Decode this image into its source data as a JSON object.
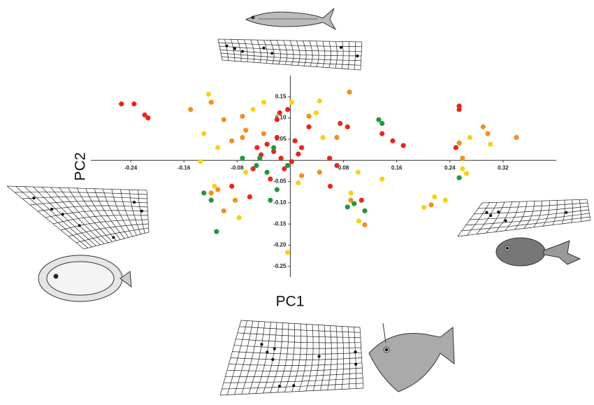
{
  "chart_data": {
    "type": "scatter",
    "x_label": "PC1",
    "y_label": "PC2",
    "xlim": [
      -0.3,
      0.4
    ],
    "ylim": [
      -0.275,
      0.2
    ],
    "xticks": [
      -0.24,
      -0.16,
      -0.08,
      0.08,
      0.16,
      0.24,
      0.32
    ],
    "yticks": [
      0.15,
      {
        "value": 0.1,
        "label": "0.10"
      },
      0.05,
      -0.05,
      {
        "value": -0.1,
        "label": "-0.10"
      },
      -0.15,
      {
        "value": -0.2,
        "label": "-0.20"
      },
      -0.25
    ],
    "series": [
      {
        "color": "#e8261b",
        "x": [
          -0.254,
          -0.235,
          -0.219,
          -0.214,
          0.254,
          0.254,
          0.154,
          0.17,
          0.138,
          0.075,
          0.086,
          0.07,
          0.06,
          -0.016,
          -0.004,
          -0.02,
          -0.035,
          -0.025,
          -0.014,
          -0.044,
          -0.009,
          -0.03,
          0.007,
          0.017,
          -0.02,
          0.002,
          -0.056,
          -0.088,
          -0.061,
          0.028,
          0.249,
          0.107,
          0.059,
          0.012,
          -0.05
        ],
        "y": [
          0.133,
          0.133,
          0.107,
          0.1,
          0.128,
          0.12,
          0.046,
          0.035,
          0.063,
          0.087,
          0.079,
          -0.012,
          -0.061,
          0.112,
          0.12,
          0.096,
          0.038,
          0.021,
          0.005,
          0.013,
          -0.02,
          -0.044,
          0.046,
          0.03,
          0.054,
          -0.003,
          -0.02,
          -0.061,
          -0.086,
          0.079,
          0.03,
          -0.094,
          0.005,
          0.015,
          0.03
        ]
      },
      {
        "color": "#f0901e",
        "x": [
          -0.119,
          -0.1,
          -0.088,
          -0.072,
          -0.119,
          -0.109,
          -0.1,
          -0.083,
          0.089,
          0.07,
          0.29,
          0.297,
          0.34,
          0.254,
          0.259,
          0.112,
          0.091,
          0.212,
          0.028,
          0.044,
          -0.04,
          -0.067,
          -0.15,
          -0.072,
          0.017
        ],
        "y": [
          0.137,
          0.096,
          0.046,
          0.054,
          -0.077,
          -0.069,
          -0.119,
          -0.094,
          0.161,
          0.054,
          0.079,
          0.063,
          0.054,
          0.041,
          0.005,
          -0.152,
          -0.094,
          -0.105,
          0.104,
          -0.028,
          0.063,
          0.071,
          0.12,
          0.104,
          -0.036
        ]
      },
      {
        "color": "#f7d117",
        "x": [
          -0.123,
          -0.13,
          -0.135,
          -0.109,
          -0.114,
          -0.077,
          -0.056,
          -0.04,
          0.002,
          0.044,
          0.039,
          0.049,
          0.102,
          0.138,
          0.259,
          0.265,
          0.217,
          0.233,
          0.201,
          -0.004,
          0.091,
          0.103,
          0.012,
          -0.067,
          0.301,
          0.27
        ],
        "y": [
          0.156,
          0.063,
          -0.003,
          0.03,
          -0.061,
          -0.135,
          0.12,
          0.137,
          0.137,
          0.14,
          0.112,
          0.054,
          -0.028,
          -0.044,
          -0.02,
          -0.031,
          -0.086,
          -0.094,
          -0.111,
          -0.217,
          -0.077,
          -0.143,
          -0.053,
          -0.028,
          0.038,
          0.054
        ]
      },
      {
        "color": "#1f9a3a",
        "x": [
          0.133,
          0.138,
          -0.046,
          -0.051,
          -0.035,
          -0.02,
          -0.119,
          -0.111,
          -0.13,
          -0.03,
          0.086,
          0.112,
          0.096,
          -0.004,
          0.254,
          -0.072,
          -0.025
        ],
        "y": [
          0.096,
          0.087,
          0.005,
          -0.012,
          -0.028,
          -0.069,
          -0.094,
          -0.168,
          -0.077,
          -0.094,
          -0.11,
          -0.119,
          -0.102,
          -0.012,
          -0.041,
          0.005,
          0.03
        ]
      }
    ]
  }
}
